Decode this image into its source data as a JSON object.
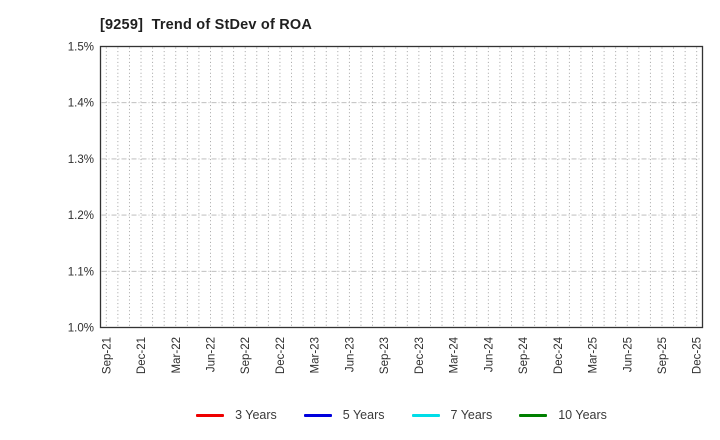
{
  "chart_data": {
    "type": "line",
    "title": "[9259]  Trend of StDev of ROA",
    "xlabel": "",
    "ylabel": "",
    "ylim": [
      1.0,
      1.5
    ],
    "y_tick_labels": [
      "1.0%",
      "1.1%",
      "1.2%",
      "1.3%",
      "1.4%",
      "1.5%"
    ],
    "x_tick_labels": [
      "Sep-21",
      "Dec-21",
      "Mar-22",
      "Jun-22",
      "Sep-22",
      "Dec-22",
      "Mar-23",
      "Jun-23",
      "Sep-23",
      "Dec-23",
      "Mar-24",
      "Jun-24",
      "Sep-24",
      "Dec-24",
      "Mar-25",
      "Jun-25",
      "Sep-25",
      "Dec-25"
    ],
    "x_months_total": 52,
    "x_tick_month_step": 3,
    "grid": true,
    "legend_position": "bottom-center",
    "series": [
      {
        "name": "3 Years",
        "color": "#ee0000",
        "values": []
      },
      {
        "name": "5 Years",
        "color": "#0000dd",
        "values": []
      },
      {
        "name": "7 Years",
        "color": "#00dde8",
        "values": []
      },
      {
        "name": "10 Years",
        "color": "#008000",
        "values": []
      }
    ],
    "plot_is_empty": true,
    "colors": {
      "axis": "#333333",
      "grid_vertical": "#999999",
      "grid_horizontal": "#b5b5b5",
      "title_text": "#1f1f1f",
      "tick_text": "#2e2e2e",
      "legend_text": "#3a3a3a",
      "background": "#ffffff"
    }
  }
}
